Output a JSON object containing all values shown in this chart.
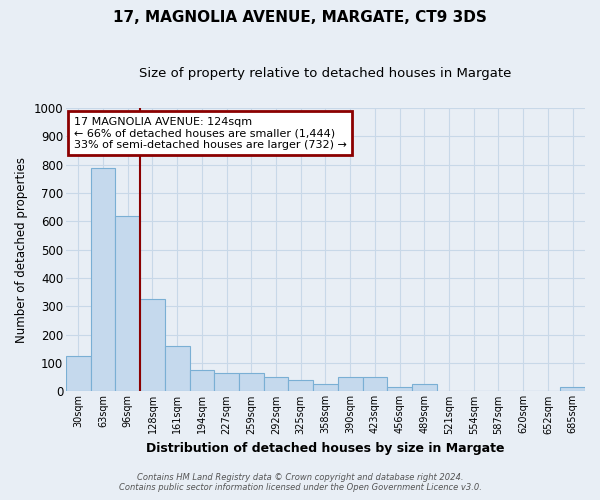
{
  "title": "17, MAGNOLIA AVENUE, MARGATE, CT9 3DS",
  "subtitle": "Size of property relative to detached houses in Margate",
  "xlabel": "Distribution of detached houses by size in Margate",
  "ylabel": "Number of detached properties",
  "categories": [
    "30sqm",
    "63sqm",
    "96sqm",
    "128sqm",
    "161sqm",
    "194sqm",
    "227sqm",
    "259sqm",
    "292sqm",
    "325sqm",
    "358sqm",
    "390sqm",
    "423sqm",
    "456sqm",
    "489sqm",
    "521sqm",
    "554sqm",
    "587sqm",
    "620sqm",
    "652sqm",
    "685sqm"
  ],
  "values": [
    125,
    790,
    620,
    325,
    160,
    75,
    65,
    65,
    50,
    40,
    25,
    50,
    50,
    15,
    25,
    0,
    0,
    0,
    0,
    0,
    15
  ],
  "bar_color": "#c5d9ed",
  "bar_edge_color": "#7aafd4",
  "ylim": [
    0,
    1000
  ],
  "yticks": [
    0,
    100,
    200,
    300,
    400,
    500,
    600,
    700,
    800,
    900,
    1000
  ],
  "vline_x_index": 2.5,
  "vline_color": "#8b0000",
  "annotation_text": "17 MAGNOLIA AVENUE: 124sqm\n← 66% of detached houses are smaller (1,444)\n33% of semi-detached houses are larger (732) →",
  "annotation_box_color": "#8b0000",
  "annotation_text_color": "#000000",
  "footer_line1": "Contains HM Land Registry data © Crown copyright and database right 2024.",
  "footer_line2": "Contains public sector information licensed under the Open Government Licence v3.0.",
  "background_color": "#e8eef5",
  "plot_bg_color": "#e8eef5",
  "grid_color": "#c8d8e8"
}
